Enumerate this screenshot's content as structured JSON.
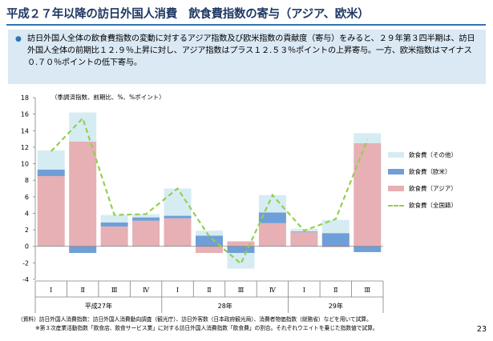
{
  "title": "平成２７年以降の訪日外国人消費　飲食費指数の寄与（アジア、欧米）",
  "summary": "訪日外国人全体の飲食費指数の変動に対するアジア指数及び欧米指数の貢献度（寄与）をみると、２９年第３四半期は、訪日外国人全体の前期比１２.９％上昇に対し、アジア指数はプラス１２.５３％ポイントの上昇寄与。一方、欧米指数はマイナス０.７０％ポイントの低下寄与。",
  "footnotes": {
    "source": "（資料）訪日外国人消費指数：訪日外国人消費動向調査（観光庁）、訪日外客数（日本政府観光局）、消費者物価指数（総務省）などを用いて試算。",
    "note": "※第３次産業活動指数「飲食店、飲食サービス業」に対する訪日外国人消費指数「飲食費」の割合。それぞれウエイトを乗じた指数値で試算。"
  },
  "page_number": "23",
  "colors": {
    "other": "#d6ecf3",
    "western": "#6f9fd8",
    "asia": "#e6b0b4",
    "total": "#92d050",
    "title": "#1f3864"
  },
  "chart_data": {
    "type": "bar",
    "stacked": true,
    "unit_note": "（季調済指数、前期比、%、%ポイント）",
    "categories": [
      "Ⅰ",
      "Ⅱ",
      "Ⅲ",
      "Ⅳ",
      "Ⅰ",
      "Ⅱ",
      "Ⅲ",
      "Ⅳ",
      "Ⅰ",
      "Ⅱ",
      "Ⅲ"
    ],
    "year_groups": [
      {
        "label": "平成27年",
        "start": 0,
        "end": 3
      },
      {
        "label": "28年",
        "start": 4,
        "end": 7
      },
      {
        "label": "29年",
        "start": 8,
        "end": 10
      }
    ],
    "ylim": [
      -4,
      18
    ],
    "yticks": [
      -4,
      -2,
      0,
      2,
      4,
      6,
      8,
      10,
      12,
      14,
      16,
      18
    ],
    "series": [
      {
        "name": "飲食費（アジア）",
        "key": "asia",
        "values": [
          8.5,
          12.7,
          2.4,
          3.1,
          3.4,
          -0.8,
          0.6,
          2.8,
          1.7,
          -0.1,
          12.5
        ]
      },
      {
        "name": "飲食費（欧米）",
        "key": "western",
        "values": [
          0.8,
          -0.8,
          0.5,
          0.4,
          0.3,
          1.3,
          -0.8,
          1.3,
          0.1,
          1.6,
          -0.7
        ]
      },
      {
        "name": "飲食費（その他）",
        "key": "other",
        "values": [
          2.3,
          3.5,
          0.9,
          0.4,
          3.3,
          0.6,
          -1.9,
          2.1,
          0.3,
          1.6,
          1.2
        ]
      }
    ],
    "line": {
      "name": "飲食費（全国籍）",
      "values": [
        11.5,
        15.5,
        3.8,
        3.9,
        7.0,
        1.2,
        -2.1,
        6.2,
        1.9,
        3.3,
        12.9
      ]
    },
    "legend": [
      {
        "label": "飲食費（その他）",
        "key": "other"
      },
      {
        "label": "飲食費（欧米）",
        "key": "western"
      },
      {
        "label": "飲食費（アジア）",
        "key": "asia"
      },
      {
        "label": "飲食費（全国籍）",
        "key": "total"
      }
    ]
  }
}
